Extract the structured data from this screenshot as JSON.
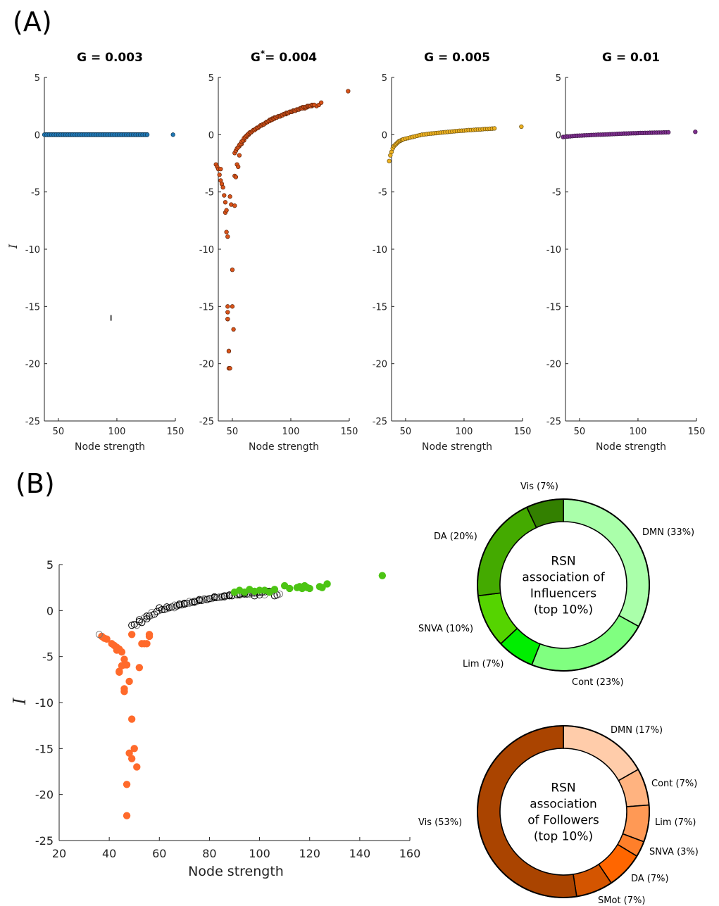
{
  "panel_labels": {
    "a": "(A)",
    "b": "(B)"
  },
  "chart_data": [
    {
      "type": "scatter",
      "title": "G = 0.003",
      "title_parts": {
        "main": "G",
        "sup": "",
        "rest": " = 0.003"
      },
      "xlabel": "Node strength",
      "ylabel": "I",
      "xlim": [
        38,
        150
      ],
      "ylim": [
        -25,
        5
      ],
      "xticks": [
        50,
        100,
        150
      ],
      "yticks": [
        5,
        0,
        -5,
        -10,
        -15,
        -20,
        -25
      ],
      "color": "#1f77b4",
      "series": [
        {
          "x": [
            38,
            40,
            42,
            44,
            46,
            48,
            50,
            52,
            54,
            56,
            58,
            60,
            62,
            64,
            66,
            68,
            70,
            72,
            74,
            76,
            78,
            80,
            82,
            84,
            86,
            88,
            90,
            92,
            94,
            96,
            98,
            100,
            102,
            104,
            106,
            108,
            110,
            112,
            114,
            116,
            118,
            120,
            122,
            124,
            126,
            148
          ],
          "y": [
            0,
            0,
            0,
            0,
            0,
            0,
            0,
            0,
            0,
            0,
            0,
            0,
            0,
            0,
            0,
            0,
            0,
            0,
            0,
            0,
            0,
            0,
            0,
            0,
            0,
            0,
            0,
            0,
            0,
            0,
            0,
            0,
            0,
            0,
            0,
            0,
            0,
            0,
            0,
            0,
            0,
            0,
            0,
            0,
            0,
            0
          ]
        }
      ],
      "marker_point": {
        "x": 95,
        "y": -16
      }
    },
    {
      "type": "scatter",
      "title": "G*= 0.004",
      "title_parts": {
        "main": "G",
        "sup": "*",
        "rest": "= 0.004"
      },
      "xlabel": "Node strength",
      "xlim": [
        38,
        150
      ],
      "ylim": [
        -25,
        5
      ],
      "xticks": [
        50,
        100,
        150
      ],
      "yticks": [
        5,
        0,
        -5,
        -10,
        -15,
        -20,
        -25
      ],
      "color": "#d95319",
      "series": [
        {
          "x": [
            36,
            37,
            38,
            39,
            40,
            41,
            42,
            43,
            44,
            44,
            45,
            45,
            46,
            46,
            46,
            47,
            47,
            48,
            49,
            50,
            50,
            51,
            52,
            52,
            53,
            54,
            55,
            56,
            56,
            58,
            60,
            62,
            64,
            66,
            68,
            70,
            72,
            74,
            76,
            78,
            80,
            82,
            84,
            86,
            88,
            90,
            92,
            94,
            96,
            98,
            100,
            102,
            104,
            106,
            108,
            110,
            112,
            114,
            116,
            118,
            120,
            122,
            124,
            126,
            149,
            40,
            46,
            46,
            47,
            48,
            52,
            53,
            54,
            55,
            56,
            57,
            58,
            59,
            60,
            61,
            62,
            63,
            64,
            65,
            66,
            67,
            68,
            69,
            70,
            71,
            72,
            73,
            74,
            75,
            76,
            77,
            78,
            79,
            80,
            81,
            82,
            83,
            84,
            85,
            86,
            87,
            88,
            89,
            90,
            91,
            92,
            93,
            94,
            95,
            96,
            97,
            98,
            99,
            100,
            101,
            102,
            103,
            104,
            105,
            106,
            107,
            108,
            109,
            110,
            111,
            112,
            113,
            114,
            115,
            116,
            117,
            118,
            119,
            120
          ],
          "y": [
            -2.6,
            -2.8,
            -3.0,
            -3.5,
            -4.0,
            -4.3,
            -4.6,
            -5.3,
            -5.9,
            -6.8,
            -6.6,
            -8.5,
            -8.9,
            -15.5,
            -16.1,
            -18.9,
            -20.4,
            -5.4,
            -6.1,
            -11.8,
            -15.0,
            -17.0,
            -6.2,
            -3.6,
            -3.7,
            -2.6,
            -2.8,
            -1.8,
            -1.0,
            -0.8,
            -0.5,
            -0.2,
            0.0,
            0.2,
            0.4,
            0.5,
            0.6,
            0.8,
            0.9,
            1.0,
            1.1,
            1.3,
            1.4,
            1.5,
            1.5,
            1.6,
            1.7,
            1.8,
            1.8,
            1.9,
            2.0,
            2.1,
            2.1,
            2.2,
            2.3,
            2.4,
            2.3,
            2.4,
            2.5,
            2.5,
            2.6,
            2.5,
            2.6,
            2.8,
            3.8,
            -3.0,
            -15.0,
            -16.1,
            -18.9,
            -20.4,
            -1.6,
            -1.4,
            -1.2,
            -1.1,
            -0.9,
            -0.8,
            -0.6,
            -0.5,
            -0.3,
            -0.2,
            -0.1,
            0.0,
            0.1,
            0.2,
            0.2,
            0.3,
            0.4,
            0.4,
            0.5,
            0.6,
            0.6,
            0.7,
            0.8,
            0.8,
            0.9,
            0.9,
            1.0,
            1.1,
            1.1,
            1.2,
            1.2,
            1.3,
            1.3,
            1.4,
            1.4,
            1.5,
            1.5,
            1.6,
            1.6,
            1.6,
            1.7,
            1.7,
            1.8,
            1.8,
            1.9,
            1.9,
            1.9,
            2.0,
            2.0,
            2.0,
            2.1,
            2.1,
            2.1,
            2.2,
            2.2,
            2.2,
            2.3,
            2.3,
            2.3,
            2.4,
            2.4,
            2.4,
            2.5,
            2.5,
            2.5,
            2.5,
            2.6,
            2.6,
            2.6
          ]
        }
      ]
    },
    {
      "type": "scatter",
      "title": "G = 0.005",
      "title_parts": {
        "main": "G",
        "sup": "",
        "rest": " = 0.005"
      },
      "xlabel": "Node strength",
      "xlim": [
        38,
        150
      ],
      "ylim": [
        -25,
        5
      ],
      "xticks": [
        50,
        100,
        150
      ],
      "yticks": [
        5,
        0,
        -5,
        -10,
        -15,
        -20,
        -25
      ],
      "color": "#edb120",
      "series": [
        {
          "x": [
            36,
            37,
            38,
            39,
            40,
            41,
            42,
            43,
            44,
            45,
            46,
            47,
            48,
            50,
            52,
            54,
            56,
            58,
            60,
            62,
            64,
            66,
            68,
            70,
            72,
            74,
            76,
            78,
            80,
            82,
            84,
            86,
            88,
            90,
            92,
            94,
            96,
            98,
            100,
            102,
            104,
            106,
            108,
            110,
            112,
            114,
            116,
            118,
            120,
            122,
            124,
            126,
            149
          ],
          "y": [
            -2.3,
            -1.8,
            -1.5,
            -1.2,
            -1.0,
            -0.9,
            -0.8,
            -0.7,
            -0.6,
            -0.55,
            -0.5,
            -0.45,
            -0.4,
            -0.35,
            -0.3,
            -0.25,
            -0.2,
            -0.15,
            -0.1,
            -0.05,
            0.0,
            0.02,
            0.05,
            0.08,
            0.1,
            0.12,
            0.14,
            0.16,
            0.18,
            0.2,
            0.22,
            0.24,
            0.26,
            0.28,
            0.3,
            0.32,
            0.34,
            0.35,
            0.36,
            0.38,
            0.4,
            0.4,
            0.42,
            0.44,
            0.45,
            0.46,
            0.48,
            0.5,
            0.5,
            0.52,
            0.53,
            0.55,
            0.7
          ]
        }
      ]
    },
    {
      "type": "scatter",
      "title": "G = 0.01",
      "title_parts": {
        "main": "G",
        "sup": "",
        "rest": " = 0.01"
      },
      "xlabel": "Node strength",
      "xlim": [
        38,
        150
      ],
      "ylim": [
        -25,
        5
      ],
      "xticks": [
        50,
        100,
        150
      ],
      "yticks": [
        5,
        0,
        -5,
        -10,
        -15,
        -20,
        -25
      ],
      "color": "#7e2f8e",
      "series": [
        {
          "x": [
            36,
            38,
            40,
            42,
            44,
            46,
            48,
            50,
            52,
            54,
            56,
            58,
            60,
            62,
            64,
            66,
            68,
            70,
            72,
            74,
            76,
            78,
            80,
            82,
            84,
            86,
            88,
            90,
            92,
            94,
            96,
            98,
            100,
            102,
            104,
            106,
            108,
            110,
            112,
            114,
            116,
            118,
            120,
            122,
            124,
            126,
            149
          ],
          "y": [
            -0.2,
            -0.18,
            -0.16,
            -0.14,
            -0.12,
            -0.1,
            -0.09,
            -0.08,
            -0.07,
            -0.06,
            -0.05,
            -0.04,
            -0.03,
            -0.02,
            -0.01,
            0.0,
            0.0,
            0.01,
            0.02,
            0.03,
            0.04,
            0.05,
            0.06,
            0.07,
            0.08,
            0.09,
            0.1,
            0.1,
            0.11,
            0.12,
            0.13,
            0.13,
            0.14,
            0.15,
            0.15,
            0.16,
            0.16,
            0.17,
            0.17,
            0.18,
            0.18,
            0.19,
            0.19,
            0.2,
            0.2,
            0.21,
            0.25
          ]
        }
      ]
    },
    {
      "type": "scatter",
      "xlabel": "Node strength",
      "ylabel": "I",
      "xlim": [
        20,
        160
      ],
      "ylim": [
        -25,
        5
      ],
      "xticks": [
        20,
        40,
        60,
        80,
        100,
        120,
        140,
        160
      ],
      "yticks": [
        5,
        0,
        -5,
        -10,
        -15,
        -20,
        -25
      ],
      "series": [
        {
          "name": "",
          "role": "followers",
          "color": "#ff6a2b",
          "x": [
            37,
            38,
            39,
            41,
            42,
            43,
            44,
            44,
            45,
            46,
            46,
            46,
            46,
            47,
            47,
            47,
            48,
            48,
            49,
            49,
            49,
            50,
            51,
            52,
            53,
            54,
            55,
            56,
            56,
            44,
            43,
            45
          ],
          "y": [
            -2.8,
            -3.0,
            -3.1,
            -3.6,
            -3.8,
            -4.3,
            -6.7,
            -6.6,
            -4.5,
            -5.3,
            -5.9,
            -8.5,
            -8.8,
            -18.9,
            -22.3,
            -5.9,
            -7.7,
            -15.5,
            -16.1,
            -2.6,
            -11.8,
            -15.0,
            -17.0,
            -6.2,
            -3.6,
            -3.6,
            -3.6,
            -2.6,
            -2.8,
            -4.2,
            -4.0,
            -6.0
          ]
        },
        {
          "name": "",
          "role": "others",
          "color": "#000000",
          "x": [
            36,
            49,
            50,
            51,
            52,
            53,
            54,
            55,
            56,
            57,
            58,
            59,
            60,
            61,
            62,
            63,
            64,
            65,
            66,
            67,
            68,
            69,
            70,
            71,
            72,
            73,
            74,
            75,
            76,
            77,
            78,
            79,
            80,
            81,
            82,
            83,
            84,
            85,
            86,
            87,
            88,
            89,
            90,
            91,
            92,
            93,
            94,
            95,
            96,
            97,
            98,
            99,
            100,
            101,
            102,
            103,
            104,
            105,
            106,
            107,
            108,
            52,
            55,
            57,
            60,
            63,
            66,
            68,
            70,
            72,
            74,
            76,
            78,
            80,
            82,
            84,
            86,
            88,
            90,
            92,
            94,
            96,
            98,
            100,
            102
          ],
          "y": [
            -2.6,
            -1.6,
            -1.5,
            -1.6,
            -1.2,
            -1.3,
            -0.8,
            -0.6,
            -0.6,
            -0.5,
            -0.4,
            -0.1,
            0.0,
            0.1,
            0.1,
            0.2,
            0.3,
            0.4,
            0.3,
            0.5,
            0.6,
            0.6,
            0.7,
            0.8,
            0.8,
            0.9,
            0.9,
            1.0,
            1.1,
            1.1,
            1.2,
            1.2,
            1.3,
            1.3,
            1.4,
            1.4,
            1.4,
            1.5,
            1.5,
            1.6,
            1.6,
            1.6,
            1.7,
            1.7,
            1.7,
            1.8,
            1.8,
            1.8,
            1.9,
            1.9,
            1.9,
            2.0,
            2.0,
            2.0,
            2.0,
            2.1,
            2.1,
            2.1,
            1.6,
            1.7,
            1.8,
            -1.0,
            -0.9,
            -0.2,
            0.3,
            0.4,
            0.6,
            0.7,
            0.8,
            1.0,
            1.0,
            1.2,
            1.3,
            1.3,
            1.5,
            1.5,
            1.6,
            1.7,
            1.7,
            1.8,
            1.9,
            1.8,
            1.6,
            1.7,
            1.7
          ]
        },
        {
          "name": "",
          "role": "influencers",
          "color": "#4cc414",
          "x": [
            90,
            92,
            94,
            96,
            98,
            100,
            102,
            104,
            106,
            110,
            112,
            115,
            116,
            117,
            118,
            119,
            120,
            124,
            125,
            127,
            149
          ],
          "y": [
            2.0,
            2.2,
            2.0,
            2.3,
            2.1,
            2.2,
            2.2,
            2.0,
            2.3,
            2.7,
            2.4,
            2.5,
            2.6,
            2.4,
            2.7,
            2.5,
            2.4,
            2.6,
            2.5,
            2.9,
            3.8
          ]
        }
      ]
    },
    {
      "type": "pie",
      "donut": true,
      "center_text": [
        "RSN",
        "association of",
        "Influencers",
        "(top 10%)"
      ],
      "slices": [
        {
          "label": "DMN (33%)",
          "value": 33,
          "color": "#aaffaa"
        },
        {
          "label": "Cont (23%)",
          "value": 23,
          "color": "#80ff80"
        },
        {
          "label": "Lim  (7%)",
          "value": 7,
          "color": "#00ee00"
        },
        {
          "label": "SNVA (10%)",
          "value": 10,
          "color": "#55d400"
        },
        {
          "label": "DA (20%)",
          "value": 20,
          "color": "#44aa00"
        },
        {
          "label": "Vis  (7%)",
          "value": 7,
          "color": "#338000"
        }
      ]
    },
    {
      "type": "pie",
      "donut": true,
      "center_text": [
        "RSN",
        "association",
        "of Followers",
        "(top 10%)"
      ],
      "slices": [
        {
          "label": "DMN (17%)",
          "value": 17,
          "color": "#ffccaa"
        },
        {
          "label": "Cont  (7%)",
          "value": 7,
          "color": "#ffb380"
        },
        {
          "label": "Lim  (7%)",
          "value": 7,
          "color": "#ff9955"
        },
        {
          "label": "SNVA  (3%)",
          "value": 3,
          "color": "#ff7f2a"
        },
        {
          "label": "DA  (7%)",
          "value": 7,
          "color": "#ff6600"
        },
        {
          "label": "SMot  (7%)",
          "value": 7,
          "color": "#d45500"
        },
        {
          "label": "Vis (53%)",
          "value": 53,
          "color": "#aa4400"
        }
      ]
    }
  ]
}
